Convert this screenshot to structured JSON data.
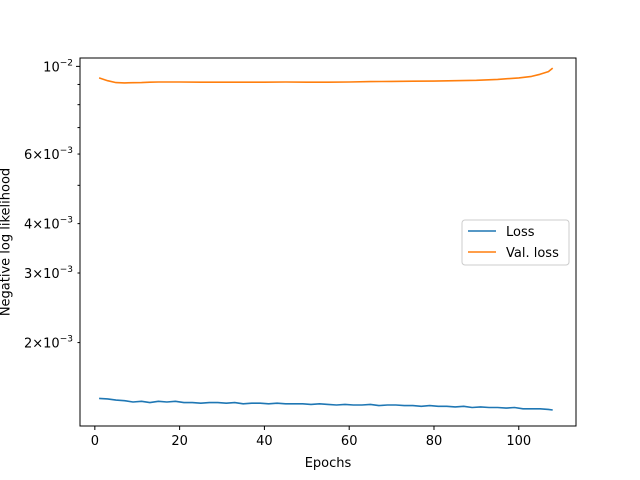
{
  "chart_data": {
    "type": "line",
    "title": "",
    "xlabel": "Epochs",
    "ylabel": "Negative log likelihood",
    "yscale": "log",
    "xlim": [
      -3.5,
      113.5
    ],
    "ylim": [
      0.00123,
      0.0105
    ],
    "x_ticks": [
      {
        "value": 0,
        "label": "0"
      },
      {
        "value": 20,
        "label": "20"
      },
      {
        "value": 40,
        "label": "40"
      },
      {
        "value": 60,
        "label": "60"
      },
      {
        "value": 80,
        "label": "80"
      },
      {
        "value": 100,
        "label": "100"
      }
    ],
    "y_major_ticks": [
      {
        "value": 0.01,
        "mant": "10",
        "exp": "−2"
      }
    ],
    "y_minor_ticks": [
      {
        "value": 0.002,
        "mant": "2×10",
        "exp": "−3"
      },
      {
        "value": 0.003,
        "mant": "3×10",
        "exp": "−3"
      },
      {
        "value": 0.004,
        "mant": "4×10",
        "exp": "−3"
      },
      {
        "value": 0.006,
        "mant": "6×10",
        "exp": "−3"
      }
    ],
    "y_unlabeled_minor_ticks": [
      0.005,
      0.007,
      0.008,
      0.009
    ],
    "legend_position": "center-right",
    "series": [
      {
        "name": "Loss",
        "color": "#1f77b4",
        "x": [
          1,
          3,
          5,
          7,
          9,
          11,
          13,
          15,
          17,
          19,
          21,
          23,
          25,
          27,
          29,
          31,
          33,
          35,
          37,
          39,
          41,
          43,
          45,
          47,
          49,
          51,
          53,
          55,
          57,
          59,
          61,
          63,
          65,
          67,
          69,
          71,
          73,
          75,
          77,
          79,
          81,
          83,
          85,
          87,
          89,
          91,
          93,
          95,
          97,
          99,
          101,
          103,
          105,
          107,
          108
        ],
        "y": [
          0.001445,
          0.00144,
          0.00143,
          0.001425,
          0.001415,
          0.00142,
          0.00141,
          0.00142,
          0.001415,
          0.00142,
          0.00141,
          0.00141,
          0.001405,
          0.00141,
          0.00141,
          0.001405,
          0.00141,
          0.0014,
          0.001405,
          0.001405,
          0.0014,
          0.001405,
          0.0014,
          0.0014,
          0.0014,
          0.001395,
          0.0014,
          0.001395,
          0.00139,
          0.001395,
          0.00139,
          0.00139,
          0.001395,
          0.001385,
          0.00139,
          0.00139,
          0.001385,
          0.001385,
          0.00138,
          0.001385,
          0.00138,
          0.00138,
          0.001375,
          0.00138,
          0.00137,
          0.001375,
          0.00137,
          0.00137,
          0.001365,
          0.00137,
          0.00136,
          0.00136,
          0.00136,
          0.001355,
          0.00135
        ]
      },
      {
        "name": "Val. loss",
        "color": "#ff7f0e",
        "x": [
          1,
          3,
          5,
          7,
          9,
          11,
          13,
          15,
          17,
          20,
          25,
          30,
          35,
          40,
          45,
          50,
          55,
          60,
          65,
          70,
          75,
          80,
          85,
          90,
          95,
          100,
          103,
          105,
          107,
          108
        ],
        "y": [
          0.00935,
          0.0092,
          0.0091,
          0.00908,
          0.00909,
          0.0091,
          0.00912,
          0.00913,
          0.00913,
          0.00913,
          0.00912,
          0.00912,
          0.00912,
          0.00912,
          0.00913,
          0.00912,
          0.00912,
          0.00913,
          0.00915,
          0.00916,
          0.00917,
          0.00918,
          0.0092,
          0.00922,
          0.00927,
          0.00935,
          0.00943,
          0.00955,
          0.0097,
          0.0099
        ]
      }
    ]
  }
}
